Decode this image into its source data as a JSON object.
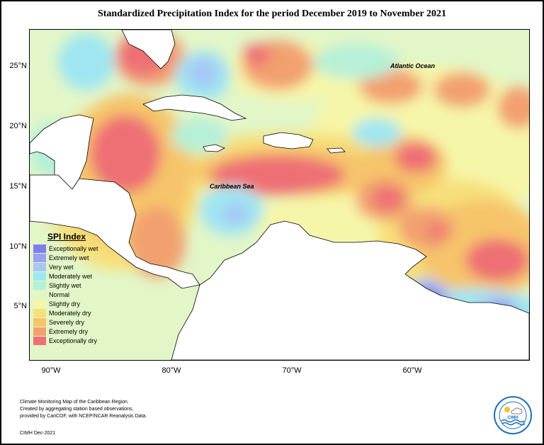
{
  "title": "Standardized Precipitation Index for the period December 2019 to November 2021",
  "lat_labels": [
    "25°N",
    "20°N",
    "15°N",
    "10°N",
    "5°N"
  ],
  "lon_labels": [
    "90°W",
    "80°W",
    "70°W",
    "60°W"
  ],
  "map_labels": {
    "atlantic": "Atlantic Ocean",
    "caribbean": "Caribbean Sea"
  },
  "legend": {
    "title": "SPI Index",
    "items": [
      {
        "label": "Exceptionally wet",
        "color": "#7f7fee"
      },
      {
        "label": "Extremely wet",
        "color": "#9aa0f2"
      },
      {
        "label": "Very wet",
        "color": "#a6c8f5"
      },
      {
        "label": "Moderately wet",
        "color": "#9fe6f2"
      },
      {
        "label": "Slightly wet",
        "color": "#b6f0d8"
      },
      {
        "label": "Normal",
        "color": "#e2f6c8"
      },
      {
        "label": "Slightly dry",
        "color": "#f6f6a8"
      },
      {
        "label": "Moderately dry",
        "color": "#f6e07a"
      },
      {
        "label": "Severely dry",
        "color": "#f6c46a"
      },
      {
        "label": "Extremely dry",
        "color": "#f2a070"
      },
      {
        "label": "Exceptionally dry",
        "color": "#ee6f75"
      }
    ]
  },
  "footer": {
    "line1": "Climate Monitoring Map of the Caribbean Region.",
    "line2": "Created by aggregating station based observations,",
    "line3": "provided by CariCOF, with NCEP/NCAR Reanalysis Data.",
    "credit": "CIMH Dec-2021"
  },
  "logo": {
    "text": "CIMH"
  }
}
